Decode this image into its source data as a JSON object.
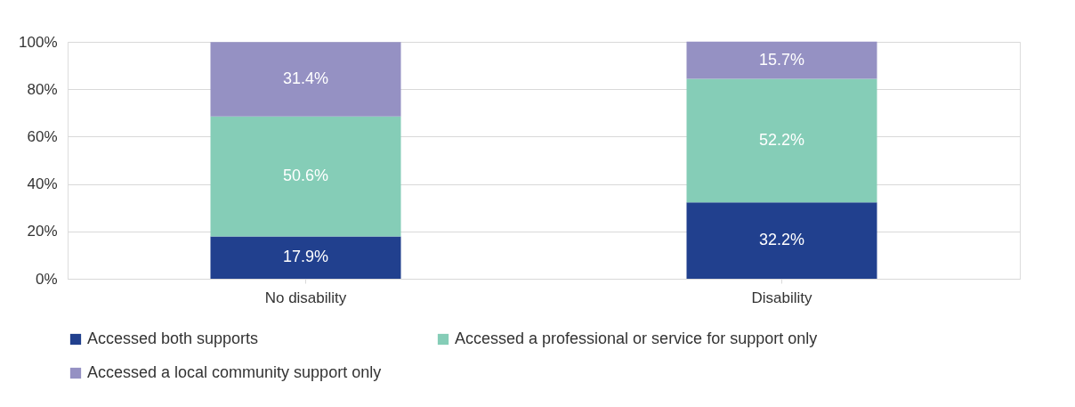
{
  "chart_data": {
    "type": "bar",
    "stacked": true,
    "categories": [
      "No disability",
      "Disability"
    ],
    "series": [
      {
        "name": "Accessed both supports",
        "color": "#21408e",
        "values": [
          17.9,
          32.2
        ],
        "value_labels": [
          "17.9%",
          "32.2%"
        ]
      },
      {
        "name": "Accessed a professional or service for support only",
        "color": "#85cdb7",
        "values": [
          50.6,
          52.2
        ],
        "value_labels": [
          "50.6%",
          "52.2%"
        ]
      },
      {
        "name": "Accessed a local community support only",
        "color": "#9591c3",
        "values": [
          31.4,
          15.7
        ],
        "value_labels": [
          "31.4%",
          "15.7%"
        ]
      }
    ],
    "ylim": [
      0,
      100
    ],
    "yticks": [
      {
        "value": 0,
        "label": "0%"
      },
      {
        "value": 20,
        "label": "20%"
      },
      {
        "value": 40,
        "label": "40%"
      },
      {
        "value": 60,
        "label": "60%"
      },
      {
        "value": 80,
        "label": "80%"
      },
      {
        "value": 100,
        "label": "100%"
      }
    ],
    "grid": "y",
    "legend": "bottom"
  }
}
